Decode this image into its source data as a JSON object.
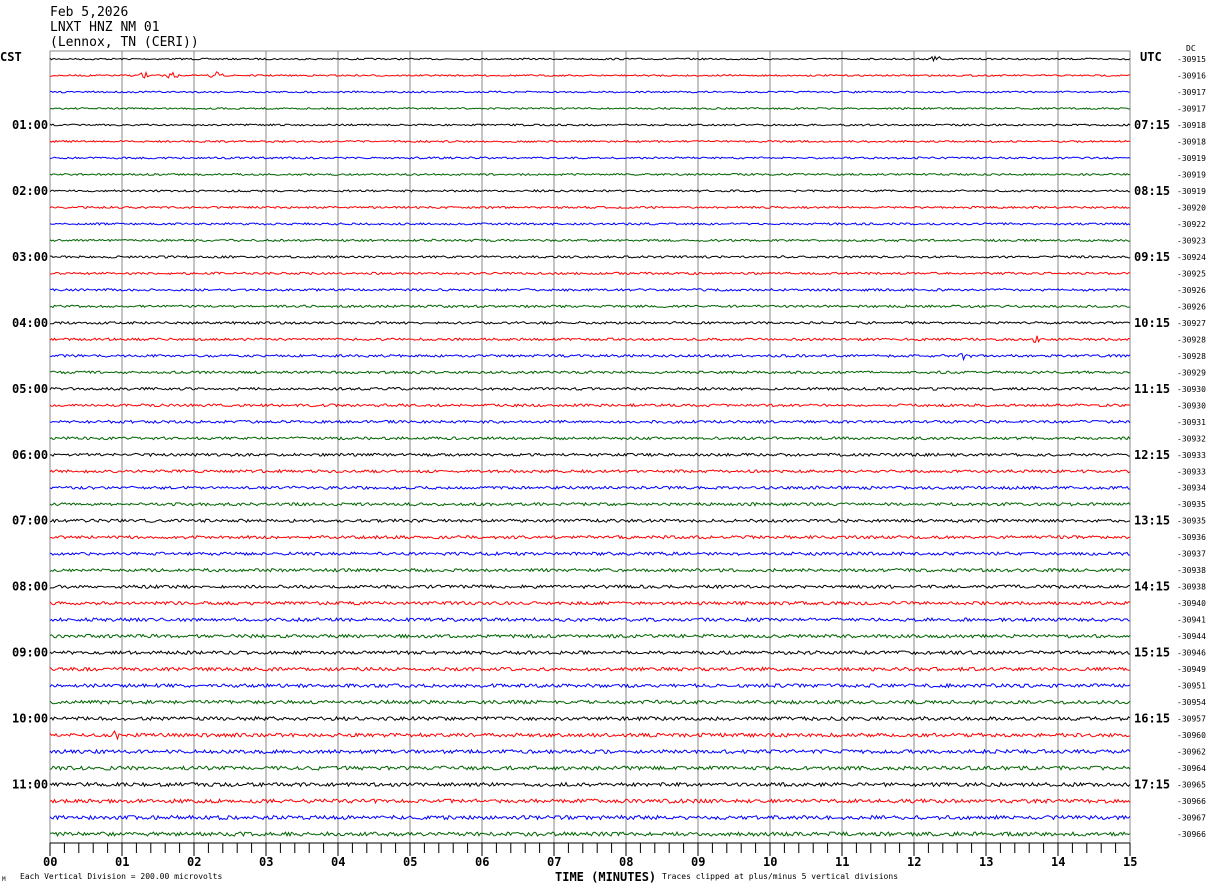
{
  "header": {
    "date": "Feb 5,2026",
    "station": "LNXT HNZ NM 01",
    "location": "(Lennox, TN (CERI))"
  },
  "chart_data": {
    "type": "line",
    "title": "LNXT HNZ NM 01",
    "xlabel": "TIME (MINUTES)",
    "xlim": [
      0,
      15
    ],
    "x_ticks": [
      "00",
      "01",
      "02",
      "03",
      "04",
      "05",
      "06",
      "07",
      "08",
      "09",
      "10",
      "11",
      "12",
      "13",
      "14",
      "15"
    ],
    "left_axis_title": "CST",
    "left_labels": [
      "01:00",
      "02:00",
      "03:00",
      "04:00",
      "05:00",
      "06:00",
      "07:00",
      "08:00",
      "09:00",
      "10:00",
      "11:00"
    ],
    "right_axis_title": "UTC",
    "right_labels": [
      "07:15",
      "08:15",
      "09:15",
      "10:15",
      "11:15",
      "12:15",
      "13:15",
      "14:15",
      "15:15",
      "16:15",
      "17:15"
    ],
    "dc_header": "DC",
    "dc_offsets": [
      -30915,
      -30916,
      -30917,
      -30917,
      -30918,
      -30918,
      -30919,
      -30919,
      -30919,
      -30920,
      -30922,
      -30923,
      -30924,
      -30925,
      -30926,
      -30926,
      -30927,
      -30928,
      -30928,
      -30929,
      -30930,
      -30930,
      -30931,
      -30932,
      -30933,
      -30933,
      -30934,
      -30935,
      -30935,
      -30936,
      -30937,
      -30938,
      -30938,
      -30940,
      -30941,
      -30944,
      -30946,
      -30949,
      -30951,
      -30954,
      -30957,
      -30960,
      -30962,
      -30964,
      -30965,
      -30966,
      -30967,
      -30966
    ],
    "trace_colors": [
      "#000000",
      "#ff0000",
      "#0000ff",
      "#006400"
    ],
    "events": [
      {
        "row": 0,
        "minute": 12.3
      },
      {
        "row": 1,
        "minute": 1.3
      },
      {
        "row": 1,
        "minute": 1.7
      },
      {
        "row": 1,
        "minute": 2.3
      },
      {
        "row": 17,
        "minute": 13.7
      },
      {
        "row": 18,
        "minute": 12.7
      },
      {
        "row": 41,
        "minute": 0.9
      }
    ],
    "grid": true
  },
  "footer": {
    "scale": "Each Vertical Division =  200.00 microvolts",
    "clip": "Traces clipped at plus/minus 5 vertical divisions",
    "logo": "M"
  }
}
